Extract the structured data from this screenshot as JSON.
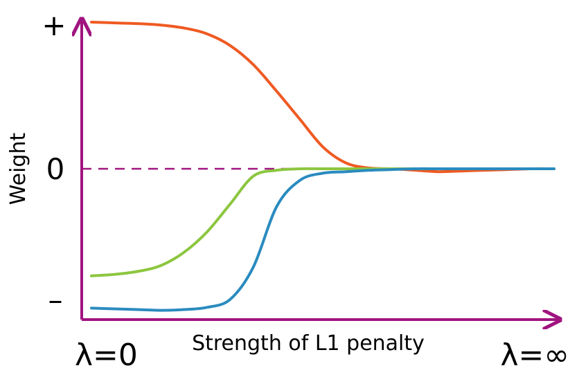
{
  "chart_data": {
    "type": "line",
    "title": "",
    "xlabel": "Strength of L1 penalty",
    "ylabel": "Weight",
    "x_start_label": "λ=0",
    "x_end_label": "λ=∞",
    "y_tick_labels": {
      "top": "+",
      "middle": "0",
      "bottom": "–"
    },
    "xlim": [
      0,
      1
    ],
    "ylim": [
      -1,
      1
    ],
    "zero_line": {
      "style": "dashed",
      "color": "#a0147f"
    },
    "axis_color": "#a0147f",
    "x": [
      0,
      0.05,
      0.1,
      0.15,
      0.2,
      0.25,
      0.3,
      0.35,
      0.4,
      0.45,
      0.5,
      0.55,
      0.6,
      0.65,
      0.7,
      0.75,
      0.8,
      0.85,
      0.9,
      0.95,
      1.0
    ],
    "series": [
      {
        "color": "#ef5a22",
        "values": [
          1.0,
          0.995,
          0.99,
          0.98,
          0.96,
          0.92,
          0.84,
          0.71,
          0.53,
          0.34,
          0.15,
          0.04,
          0.005,
          0.0,
          -0.01,
          -0.02,
          -0.015,
          -0.01,
          -0.005,
          0.0,
          0.0
        ]
      },
      {
        "color": "#8cc63f",
        "values": [
          -0.73,
          -0.72,
          -0.7,
          -0.66,
          -0.57,
          -0.43,
          -0.24,
          -0.05,
          -0.01,
          0.0,
          0.0,
          0.0,
          0.0,
          0.0,
          0.0,
          0.0,
          0.0,
          0.0,
          0.0,
          0.0,
          0.0
        ]
      },
      {
        "color": "#2a8bbf",
        "values": [
          -0.95,
          -0.955,
          -0.96,
          -0.965,
          -0.96,
          -0.945,
          -0.89,
          -0.67,
          -0.26,
          -0.08,
          -0.03,
          -0.02,
          -0.01,
          -0.005,
          0.0,
          0.0,
          0.0,
          0.0,
          0.0,
          0.0,
          0.0
        ]
      }
    ]
  }
}
